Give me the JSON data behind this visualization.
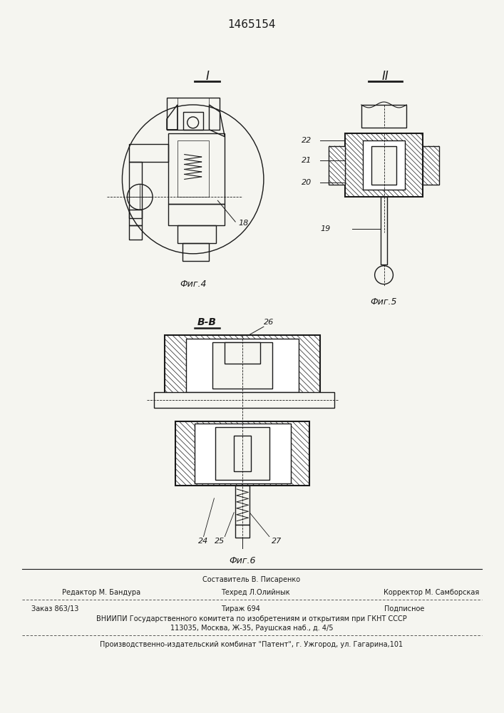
{
  "patent_number": "1465154",
  "bg_color": "#f5f5f0",
  "line_color": "#1a1a1a",
  "fig_color": "#1a1a1a",
  "hatch_color": "#1a1a1a",
  "footer": {
    "sostavitel": "Составитель В. Писаренко",
    "editor": "Редактор М. Бандура",
    "techred": "Техред Л.Олийнык",
    "corrector": "Корректор М. Самборская",
    "order": "Заказ 863/13",
    "tirazh": "Тираж 694",
    "podpisnoe": "Подписное",
    "vniiipi_line1": "ВНИИПИ Государственного комитета по изобретениям и открытиям при ГКНТ СССР",
    "vniiipi_line2": "113035, Москва, Ж-35, Раушская наб., д. 4/5",
    "proizv": "Производственно-издательский комбинат \"Патент\", г. Ужгород, ул. Гагарина,101"
  }
}
